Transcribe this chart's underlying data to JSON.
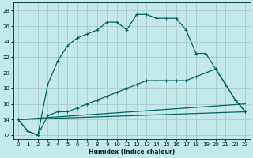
{
  "xlabel": "Humidex (Indice chaleur)",
  "bg_color": "#c5e8e8",
  "grid_color": "#a8cccc",
  "line_color": "#006666",
  "xlim": [
    -0.5,
    23.5
  ],
  "ylim": [
    11.5,
    29
  ],
  "yticks": [
    12,
    14,
    16,
    18,
    20,
    22,
    24,
    26,
    28
  ],
  "xticks": [
    0,
    1,
    2,
    3,
    4,
    5,
    6,
    7,
    8,
    9,
    10,
    11,
    12,
    13,
    14,
    15,
    16,
    17,
    18,
    19,
    20,
    21,
    22,
    23
  ],
  "series1_x": [
    0,
    1,
    2,
    3,
    4,
    5,
    6,
    7,
    8,
    9,
    10,
    11,
    12,
    13,
    14,
    15,
    16,
    17,
    18,
    19,
    20,
    21,
    22,
    23
  ],
  "series1_y": [
    14.0,
    12.5,
    12.0,
    18.5,
    21.5,
    23.5,
    24.5,
    25.0,
    25.5,
    26.5,
    26.5,
    25.5,
    27.5,
    27.5,
    27.0,
    27.0,
    27.0,
    25.5,
    22.5,
    22.5,
    20.5,
    18.5,
    16.5,
    15.0
  ],
  "series2_x": [
    0,
    1,
    2,
    3,
    4,
    5,
    6,
    7,
    8,
    9,
    10,
    11,
    12,
    13,
    14,
    15,
    16,
    17,
    18,
    19,
    20,
    21,
    22,
    23
  ],
  "series2_y": [
    14.0,
    12.5,
    12.0,
    14.5,
    15.0,
    15.0,
    15.5,
    16.0,
    16.5,
    17.0,
    17.5,
    18.0,
    18.5,
    19.0,
    19.0,
    19.0,
    19.0,
    19.0,
    19.5,
    20.0,
    20.5,
    18.5,
    16.5,
    15.0
  ],
  "series3_x": [
    0,
    23
  ],
  "series3_y": [
    14.0,
    15.0
  ],
  "series4_x": [
    0,
    23
  ],
  "series4_y": [
    14.0,
    16.0
  ]
}
